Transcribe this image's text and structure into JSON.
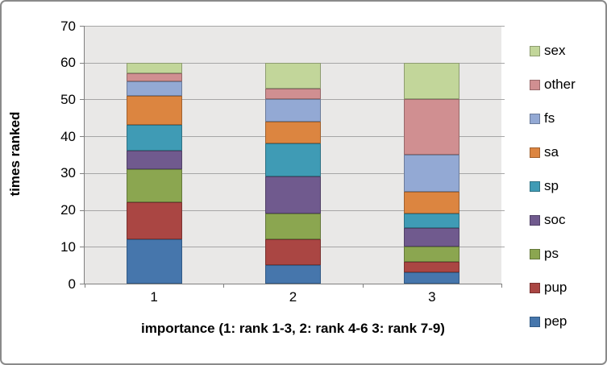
{
  "chart_data": {
    "type": "bar",
    "stacked": true,
    "title": "",
    "xlabel": "importance (1: rank 1-3, 2: rank 4-6 3: rank 7-9)",
    "ylabel": "times ranked",
    "categories": [
      "1",
      "2",
      "3"
    ],
    "series": [
      {
        "name": "pep",
        "values": [
          12,
          5,
          3
        ],
        "fill": "#4676AC",
        "border": "#325A85"
      },
      {
        "name": "pup",
        "values": [
          10,
          7,
          3
        ],
        "fill": "#AA4643",
        "border": "#7A3230"
      },
      {
        "name": "ps",
        "values": [
          9,
          7,
          4
        ],
        "fill": "#8BA650",
        "border": "#64783A"
      },
      {
        "name": "soc",
        "values": [
          5,
          10,
          5
        ],
        "fill": "#705A8E",
        "border": "#514167"
      },
      {
        "name": "sp",
        "values": [
          7,
          9,
          4
        ],
        "fill": "#3F9BB5",
        "border": "#2E7183"
      },
      {
        "name": "sa",
        "values": [
          8,
          6,
          6
        ],
        "fill": "#DC8540",
        "border": "#A0612F"
      },
      {
        "name": "fs",
        "values": [
          4,
          6,
          10
        ],
        "fill": "#93A9D4",
        "border": "#6B7B9A"
      },
      {
        "name": "other",
        "values": [
          2,
          3,
          15
        ],
        "fill": "#D08F91",
        "border": "#976869"
      },
      {
        "name": "sex",
        "values": [
          3,
          7,
          10
        ],
        "fill": "#C2D69A",
        "border": "#8D9C70"
      }
    ],
    "legend_order_top_to_bottom": [
      "sex",
      "other",
      "fs",
      "sa",
      "sp",
      "soc",
      "ps",
      "pup",
      "pep"
    ],
    "ylim": [
      0,
      70
    ],
    "yticks": [
      0,
      10,
      20,
      30,
      40,
      50,
      60,
      70
    ],
    "xticks": [
      "1",
      "2",
      "3"
    ],
    "legend_position": "right",
    "grid": true
  },
  "colors": {
    "plot_bg": "#E9E8E7",
    "gridline": "#A6A6A6",
    "axis": "#7F7F7F",
    "frame_border": "#8A8A8A",
    "text": "#000000"
  }
}
